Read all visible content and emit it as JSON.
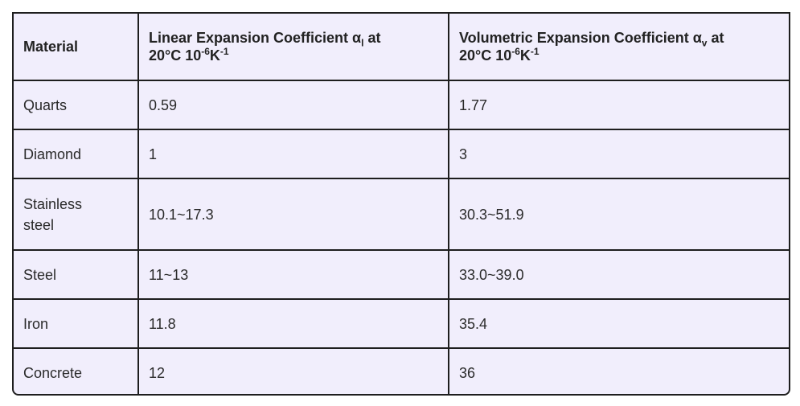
{
  "table": {
    "header": [
      [
        "Material"
      ],
      [
        "Linear Expansion Coefficient α",
        "l",
        " at",
        "20°C 10",
        "-6",
        "K",
        "-1"
      ],
      [
        "Volumetric Expansion Coefficient α",
        "v",
        " at",
        "20°C 10",
        "-6",
        "K",
        "-1"
      ]
    ],
    "rows": [
      [
        "Quarts",
        "0.59",
        "1.77"
      ],
      [
        "Diamond",
        "1",
        "3"
      ],
      [
        "Stainless steel",
        "10.1~17.3",
        "30.3~51.9"
      ],
      [
        "Steel",
        "11~13",
        "33.0~39.0"
      ],
      [
        "Iron",
        "11.8",
        "35.4"
      ],
      [
        "Concrete",
        "12",
        "36"
      ]
    ]
  }
}
